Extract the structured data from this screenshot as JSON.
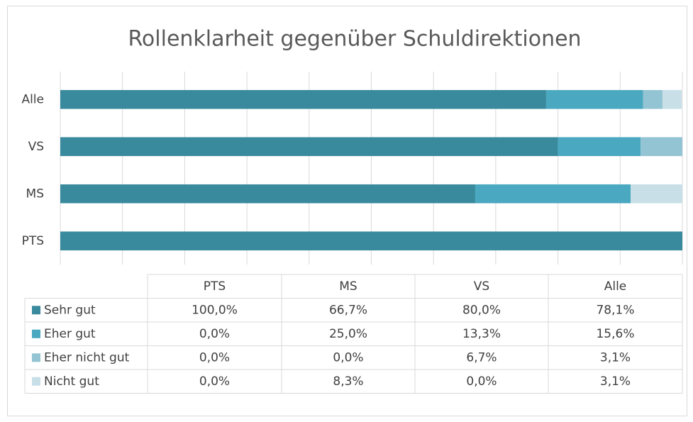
{
  "chart_data": {
    "type": "stacked_barh",
    "title": "Rollenklarheit gegenüber Schuldirektionen",
    "categories": [
      "PTS",
      "MS",
      "VS",
      "Alle"
    ],
    "series": [
      {
        "name": "Sehr gut",
        "color": "#3a8a9e",
        "values": [
          100.0,
          66.7,
          80.0,
          78.1
        ],
        "value_labels": [
          "100,0%",
          "66,7%",
          "80,0%",
          "78,1%"
        ]
      },
      {
        "name": "Eher gut",
        "color": "#4aa8c0",
        "values": [
          0.0,
          25.0,
          13.3,
          15.6
        ],
        "value_labels": [
          "0,0%",
          "25,0%",
          "13,3%",
          "15,6%"
        ]
      },
      {
        "name": "Eher nicht gut",
        "color": "#93c4d4",
        "values": [
          0.0,
          0.0,
          6.7,
          3.1
        ],
        "value_labels": [
          "0,0%",
          "0,0%",
          "6,7%",
          "3,1%"
        ]
      },
      {
        "name": "Nicht gut",
        "color": "#c8dfe7",
        "values": [
          0.0,
          8.3,
          0.0,
          3.1
        ],
        "value_labels": [
          "0,0%",
          "8,3%",
          "0,0%",
          "3,1%"
        ]
      }
    ],
    "xlim": [
      0,
      100
    ],
    "xticks": [
      0,
      10,
      20,
      30,
      40,
      50,
      60,
      70,
      80,
      90,
      100
    ],
    "grid": true
  }
}
